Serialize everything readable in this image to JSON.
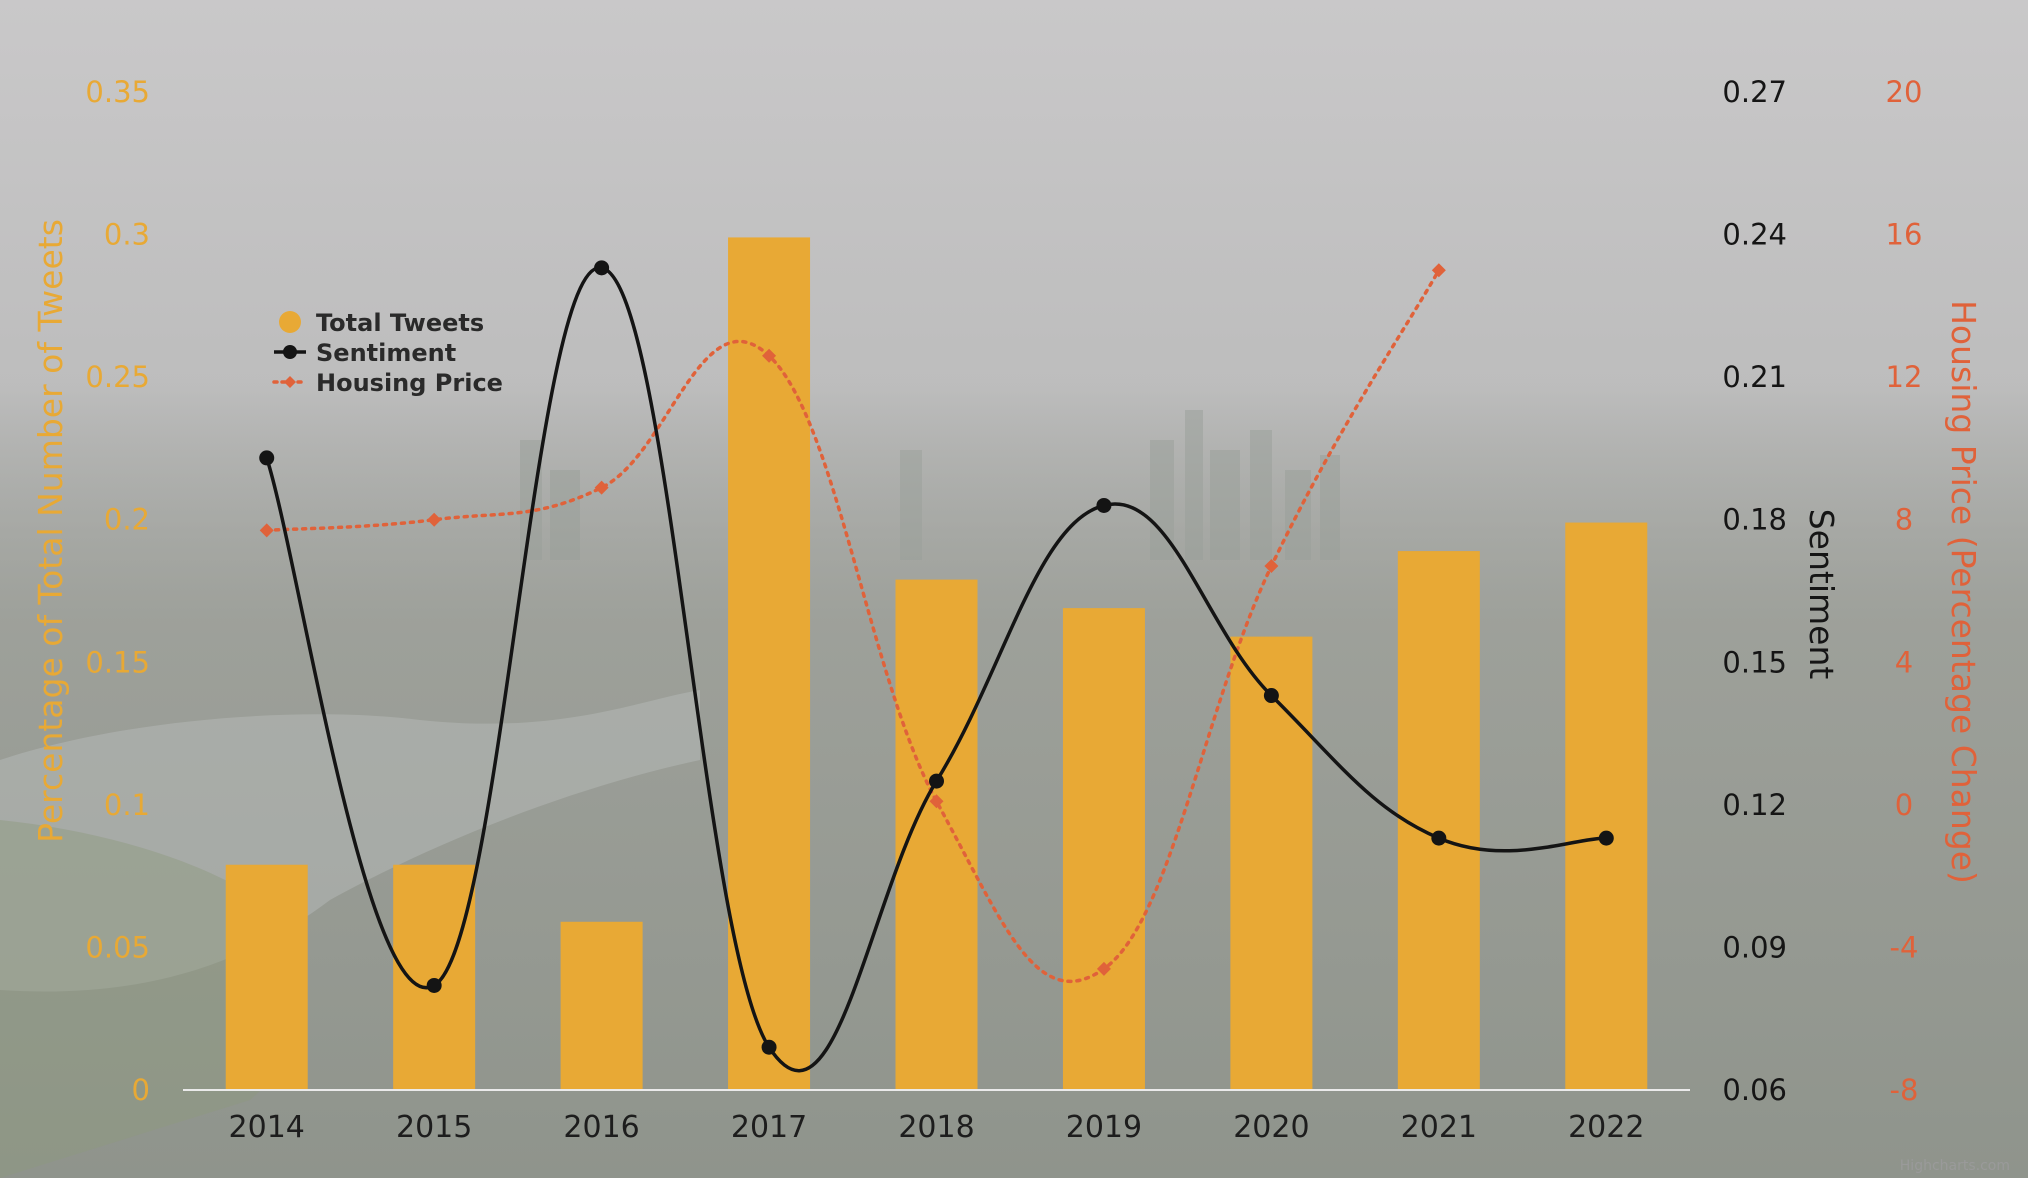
{
  "chart_data": {
    "type": "bar",
    "categories": [
      "2014",
      "2015",
      "2016",
      "2017",
      "2018",
      "2019",
      "2020",
      "2021",
      "2022"
    ],
    "series": [
      {
        "name": "Total Tweets",
        "type": "bar",
        "axis": "left",
        "color": "#E8A935",
        "values": [
          0.079,
          0.079,
          0.059,
          0.299,
          0.179,
          0.169,
          0.159,
          0.189,
          0.199
        ]
      },
      {
        "name": "Sentiment",
        "type": "line",
        "axis": "right1",
        "color": "#141414",
        "line_style": "solid-smooth",
        "values": [
          0.193,
          0.082,
          0.233,
          0.069,
          0.125,
          0.183,
          0.143,
          0.113,
          0.113
        ]
      },
      {
        "name": "Housing Price",
        "type": "line",
        "axis": "right2",
        "color": "#E0623A",
        "line_style": "dotted-smooth",
        "marker": "diamond",
        "values": [
          7.7,
          8.0,
          8.9,
          12.6,
          0.1,
          -4.6,
          6.7,
          15.0,
          null
        ]
      }
    ],
    "axes": {
      "left": {
        "title": "Percentage of Total Number of Tweets",
        "min": 0,
        "max": 0.35,
        "ticks": [
          "0",
          "0.05",
          "0.1",
          "0.15",
          "0.2",
          "0.25",
          "0.3",
          "0.35"
        ],
        "color": "#E8A935"
      },
      "right1": {
        "title": "Sentiment",
        "min": 0.06,
        "max": 0.27,
        "ticks": [
          "0.06",
          "0.09",
          "0.12",
          "0.15",
          "0.18",
          "0.21",
          "0.24",
          "0.27"
        ],
        "color": "#141414"
      },
      "right2": {
        "title": "Housing Price (Percentage Change)",
        "min": -8,
        "max": 20,
        "ticks": [
          "-8",
          "-4",
          "0",
          "4",
          "8",
          "12",
          "16",
          "20"
        ],
        "color": "#E0623A"
      }
    },
    "legend": {
      "placement": "top-left",
      "items": [
        "Total Tweets",
        "Sentiment",
        "Housing Price"
      ]
    },
    "grid": false,
    "credit": "Highcharts.com"
  }
}
